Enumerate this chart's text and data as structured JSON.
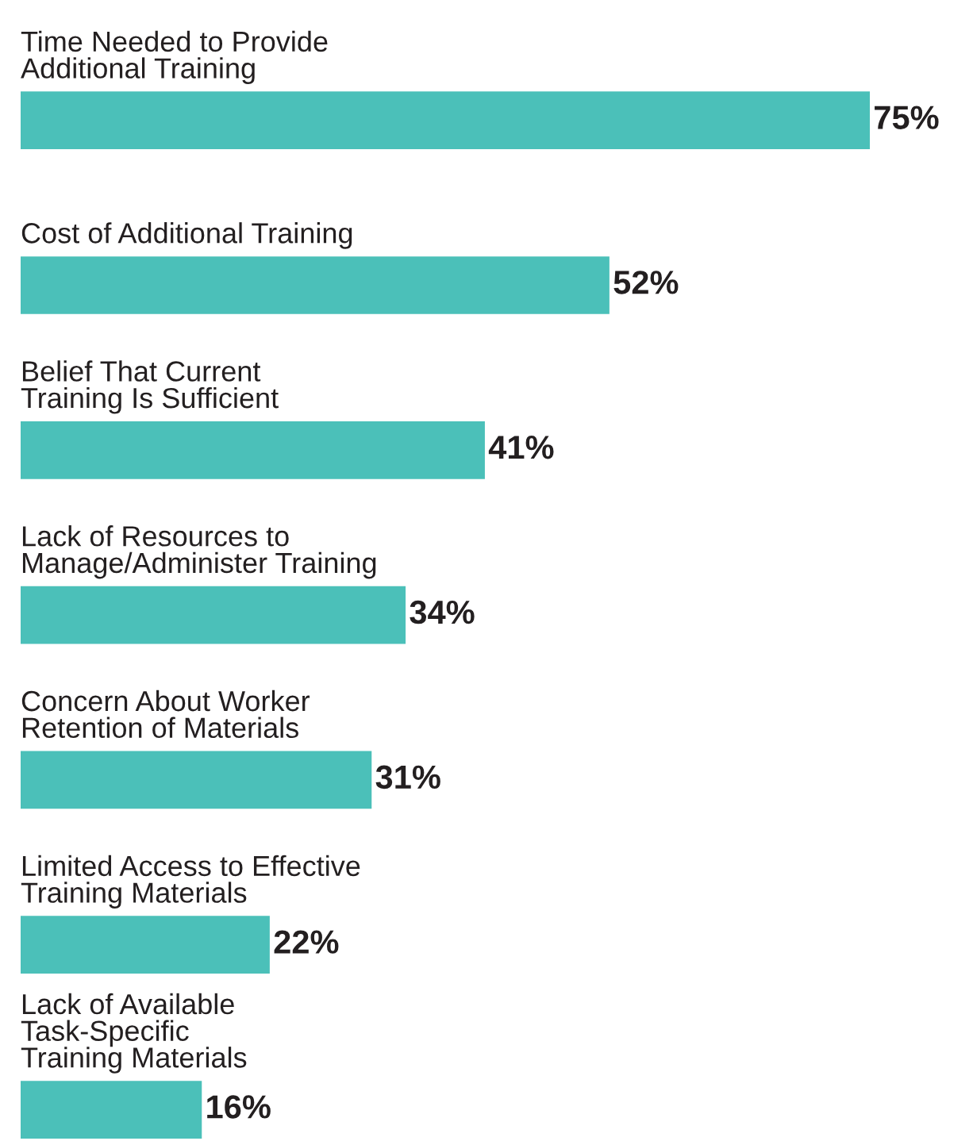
{
  "chart_data": {
    "type": "bar",
    "orientation": "horizontal",
    "categories": [
      "Time Needed to Provide\nAdditional Training",
      "Cost of Additional Training",
      "Belief That Current\nTraining Is Sufficient",
      "Lack of Resources to\nManage/Administer Training",
      "Concern About Worker\nRetention of Materials",
      "Limited Access to Effective\nTraining Materials",
      "Lack of Available\nTask-Specific\nTraining Materials"
    ],
    "values": [
      75,
      52,
      41,
      34,
      31,
      22,
      16
    ],
    "value_labels": [
      "75%",
      "52%",
      "41%",
      "34%",
      "31%",
      "22%",
      "16%"
    ],
    "color": "#4bc0b9"
  }
}
